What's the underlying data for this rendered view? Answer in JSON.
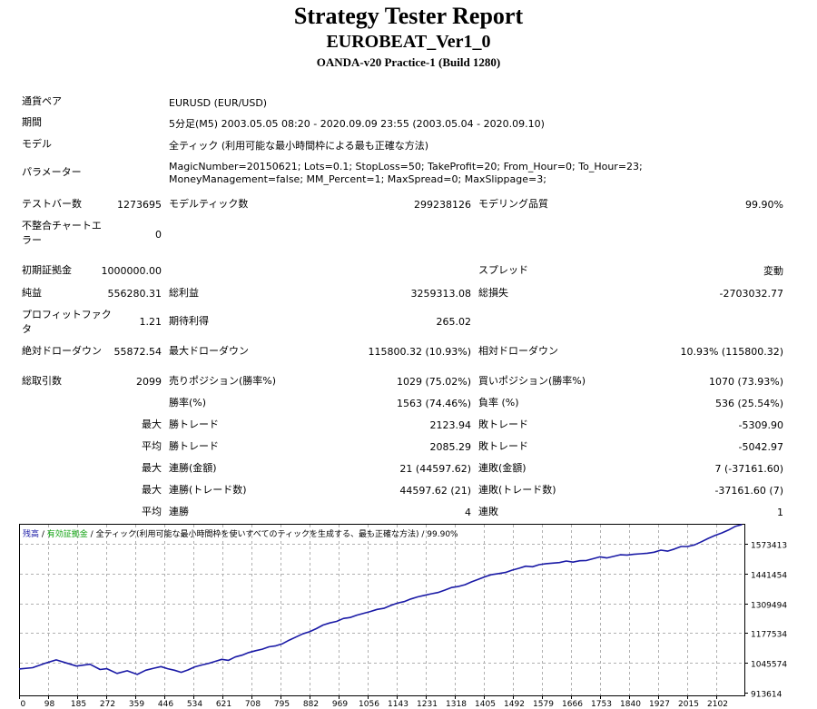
{
  "report": {
    "title": "Strategy Tester Report",
    "ea_name": "EUROBEAT_Ver1_0",
    "server": "OANDA-v20 Practice-1 (Build 1280)"
  },
  "settings": {
    "symbol_label": "通貨ペア",
    "symbol_value": "EURUSD (EUR/USD)",
    "period_label": "期間",
    "period_value": "5分足(M5) 2003.05.05 08:20 - 2020.09.09 23:55 (2003.05.04 - 2020.09.10)",
    "model_label": "モデル",
    "model_value": "全ティック (利用可能な最小時間枠による最も正確な方法)",
    "params_label": "パラメーター",
    "params_value": "MagicNumber=20150621; Lots=0.1; StopLoss=50; TakeProfit=20; From_Hour=0; To_Hour=23; MoneyManagement=false; MM_Percent=1; MaxSpread=0; MaxSlippage=3;"
  },
  "testinfo": {
    "bars_label": "テストバー数",
    "bars_value": "1273695",
    "ticks_label": "モデルティック数",
    "ticks_value": "299238126",
    "quality_label": "モデリング品質",
    "quality_value": "99.90%",
    "mismatch_label": "不整合チャートエラー",
    "mismatch_value": "0"
  },
  "results": {
    "deposit_label": "初期証拠金",
    "deposit_value": "1000000.00",
    "spread_label": "スプレッド",
    "spread_value": "変動",
    "netprofit_label": "純益",
    "netprofit_value": "556280.31",
    "grossprofit_label": "総利益",
    "grossprofit_value": "3259313.08",
    "grossloss_label": "総損失",
    "grossloss_value": "-2703032.77",
    "pf_label": "プロフィットファクタ",
    "pf_value": "1.21",
    "expected_label": "期待利得",
    "expected_value": "265.02",
    "absdd_label": "絶対ドローダウン",
    "absdd_value": "55872.54",
    "maxdd_label": "最大ドローダウン",
    "maxdd_value": "115800.32 (10.93%)",
    "reldd_label": "相対ドローダウン",
    "reldd_value": "10.93% (115800.32)"
  },
  "trades": {
    "total_label": "総取引数",
    "total_value": "2099",
    "short_label": "売りポジション(勝率%)",
    "short_value": "1029 (75.02%)",
    "long_label": "買いポジション(勝率%)",
    "long_value": "1070 (73.93%)",
    "winrate_label": "勝率(%)",
    "winrate_value": "1563 (74.46%)",
    "lossrate_label": "負率 (%)",
    "lossrate_value": "536 (25.54%)",
    "largest_label": "最大",
    "largest_win_label": "勝トレード",
    "largest_win_value": "2123.94",
    "largest_loss_label": "敗トレード",
    "largest_loss_value": "-5309.90",
    "average_label": "平均",
    "average_win_label": "勝トレード",
    "average_win_value": "2085.29",
    "average_loss_label": "敗トレード",
    "average_loss_value": "-5042.97",
    "max1_label": "最大",
    "max_consec_wins_label": "連勝(金額)",
    "max_consec_wins_value": "21 (44597.62)",
    "max_consec_losses_label": "連敗(金額)",
    "max_consec_losses_value": "7 (-37161.60)",
    "max2_label": "最大",
    "max_consec_profit_label": "連勝(トレード数)",
    "max_consec_profit_value": "44597.62 (21)",
    "max_consec_loss_label": "連敗(トレード数)",
    "max_consec_loss_value": "-37161.60 (7)",
    "avg2_label": "平均",
    "avg_consec_wins_label": "連勝",
    "avg_consec_wins_value": "4",
    "avg_consec_losses_label": "連敗",
    "avg_consec_losses_value": "1"
  },
  "chart_data": {
    "type": "line",
    "legend": {
      "balance": "残高",
      "equity": "有効証拠金",
      "separator": " / ",
      "model": "全ティック(利用可能な最小時間枠を使いすべてのティックを生成する、最も正確な方法)",
      "quality": "99.90%"
    },
    "x_ticks": [
      "0",
      "98",
      "185",
      "272",
      "359",
      "446",
      "534",
      "621",
      "708",
      "795",
      "882",
      "969",
      "1056",
      "1143",
      "1231",
      "1318",
      "1405",
      "1492",
      "1579",
      "1666",
      "1753",
      "1840",
      "1927",
      "2015",
      "2102"
    ],
    "y_ticks": [
      "1573413",
      "1441454",
      "1309494",
      "1177534",
      "1045574",
      "913614"
    ],
    "ylim": [
      913614,
      1573413
    ],
    "xlim": [
      0,
      2150
    ],
    "grid": true,
    "series": [
      {
        "name": "残高",
        "color": "#1a1aa6",
        "x": [
          0,
          40,
          80,
          110,
          140,
          170,
          210,
          240,
          260,
          290,
          320,
          350,
          375,
          400,
          420,
          440,
          460,
          480,
          500,
          520,
          540,
          560,
          580,
          600,
          620,
          640,
          660,
          680,
          700,
          720,
          740,
          760,
          780,
          800,
          820,
          840,
          860,
          880,
          900,
          920,
          940,
          960,
          980,
          1000,
          1020,
          1040,
          1060,
          1080,
          1100,
          1120,
          1140,
          1160,
          1180,
          1200,
          1220,
          1240,
          1260,
          1280,
          1300,
          1320,
          1340,
          1360,
          1380,
          1400,
          1420,
          1440,
          1460,
          1480,
          1500,
          1520,
          1540,
          1560,
          1580,
          1600,
          1620,
          1640,
          1660,
          1680,
          1700,
          1720,
          1740,
          1760,
          1780,
          1800,
          1820,
          1840,
          1860,
          1880,
          1900,
          1920,
          1940,
          1960,
          1980,
          2000,
          2020,
          2040,
          2060,
          2080,
          2100,
          2120,
          2140
        ],
        "y": [
          1017000,
          1022000,
          1040000,
          1052000,
          1040000,
          1028000,
          1035000,
          1015000,
          1018000,
          1000000,
          1010000,
          996000,
          1012000,
          1020000,
          1026000,
          1018000,
          1012000,
          1004000,
          1013000,
          1025000,
          1032000,
          1038000,
          1046000,
          1054000,
          1050000,
          1063000,
          1070000,
          1080000,
          1087000,
          1093000,
          1102000,
          1106000,
          1114000,
          1128000,
          1140000,
          1152000,
          1160000,
          1172000,
          1186000,
          1194000,
          1200000,
          1211000,
          1215000,
          1224000,
          1231000,
          1238000,
          1246000,
          1250000,
          1261000,
          1270000,
          1276000,
          1286000,
          1294000,
          1300000,
          1306000,
          1311000,
          1320000,
          1330000,
          1334000,
          1341000,
          1352000,
          1362000,
          1372000,
          1380000,
          1384000,
          1388000,
          1397000,
          1404000,
          1412000,
          1410000,
          1418000,
          1422000,
          1424000,
          1426000,
          1432000,
          1428000,
          1433000,
          1434000,
          1441000,
          1448000,
          1444000,
          1450000,
          1456000,
          1455000,
          1458000,
          1460000,
          1462000,
          1466000,
          1474000,
          1470000,
          1478000,
          1488000,
          1488000,
          1494000,
          1506000,
          1519000,
          1530000,
          1540000,
          1551000,
          1565000,
          1572000
        ]
      }
    ]
  }
}
